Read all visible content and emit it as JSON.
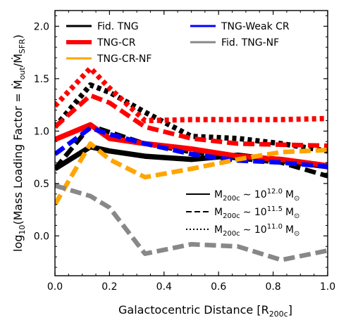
{
  "chart_data": {
    "type": "line",
    "xlabel": "Galactocentric Distance [R",
    "xlabel_sub": "200c",
    "xlabel_close": "]",
    "ylabel": {
      "prefix": "log",
      "prefix_sub": "10",
      "main": "(Mass Loading Factor = Ṁ",
      "sub1": "out",
      "mid": "/Ṁ",
      "sub2": "SFR",
      "close": ")"
    },
    "xlim": [
      0.0,
      1.0
    ],
    "ylim": [
      -0.38,
      2.15
    ],
    "xticks": [
      "0.0",
      "0.2",
      "0.4",
      "0.6",
      "0.8",
      "1.0"
    ],
    "xtick_values": [
      0.0,
      0.2,
      0.4,
      0.6,
      0.8,
      1.0
    ],
    "yticks": [
      "0.0",
      "0.5",
      "1.0",
      "1.5",
      "2.0"
    ],
    "ytick_values": [
      0.0,
      0.5,
      1.0,
      1.5,
      2.0
    ],
    "grid": false,
    "x": [
      0.0,
      0.13,
      0.2,
      0.33,
      0.5,
      0.67,
      0.83,
      1.0
    ],
    "series": [
      {
        "name": "Fid. TNG",
        "color": "#000000",
        "style": "solid",
        "mass": "12.0",
        "values": [
          0.64,
          0.85,
          0.81,
          0.76,
          0.73,
          0.77,
          0.72,
          0.66
        ]
      },
      {
        "name": "Fid. TNG",
        "color": "#000000",
        "style": "dashed",
        "mass": "11.5",
        "values": [
          0.64,
          1.05,
          0.99,
          0.88,
          0.8,
          0.74,
          0.7,
          0.57
        ]
      },
      {
        "name": "Fid. TNG",
        "color": "#000000",
        "style": "dotted",
        "mass": "11.0",
        "values": [
          1.04,
          1.44,
          1.37,
          1.18,
          0.95,
          0.93,
          0.88,
          0.81
        ]
      },
      {
        "name": "TNG-CR",
        "color": "#ff0000",
        "style": "solid",
        "mass": "12.0",
        "values": [
          0.92,
          1.06,
          0.93,
          0.88,
          0.83,
          0.76,
          0.73,
          0.67
        ]
      },
      {
        "name": "TNG-CR",
        "color": "#ff0000",
        "style": "dashed",
        "mass": "11.5",
        "values": [
          1.04,
          1.34,
          1.27,
          1.04,
          0.93,
          0.88,
          0.87,
          0.86
        ]
      },
      {
        "name": "TNG-CR",
        "color": "#ff0000",
        "style": "dotted",
        "mass": "11.0",
        "values": [
          1.24,
          1.6,
          1.41,
          1.1,
          1.11,
          1.11,
          1.11,
          1.12
        ]
      },
      {
        "name": "TNG-Weak CR",
        "color": "#0000ff",
        "style": "dashed",
        "mass": "11.5",
        "values": [
          0.78,
          1.03,
          0.97,
          0.88,
          0.78,
          0.72,
          0.7,
          0.66
        ]
      },
      {
        "name": "TNG-CR-NF",
        "color": "#ffa500",
        "style": "dashed",
        "mass": "11.5",
        "values": [
          0.3,
          0.88,
          0.73,
          0.56,
          0.64,
          0.73,
          0.8,
          0.82
        ]
      },
      {
        "name": "Fid. TNG-NF",
        "color": "#888888",
        "style": "dashed",
        "mass": "11.5",
        "values": [
          0.48,
          0.38,
          0.27,
          -0.17,
          -0.08,
          -0.1,
          -0.23,
          -0.14
        ]
      }
    ],
    "legend_models": [
      {
        "label": "Fid.  TNG",
        "color": "#000000"
      },
      {
        "label": "TNG-Weak CR",
        "color": "#0000ff"
      },
      {
        "label": "TNG-CR",
        "color": "#ff0000"
      },
      {
        "label": "Fid.  TNG-NF",
        "color": "#888888"
      },
      {
        "label": "TNG-CR-NF",
        "color": "#ffa500"
      }
    ],
    "legend_masses": [
      {
        "style": "solid",
        "m": "M",
        "m_sub": "200c",
        "approx": "∼ 10",
        "exp": "12.0",
        "unit": "M",
        "unit_sub": "⊙"
      },
      {
        "style": "dashed",
        "m": "M",
        "m_sub": "200c",
        "approx": "∼ 10",
        "exp": "11.5",
        "unit": "M",
        "unit_sub": "⊙"
      },
      {
        "style": "dotted",
        "m": "M",
        "m_sub": "200c",
        "approx": "∼ 10",
        "exp": "11.0",
        "unit": "M",
        "unit_sub": "⊙"
      }
    ],
    "legend_placement": [
      "top",
      "center-right"
    ]
  }
}
